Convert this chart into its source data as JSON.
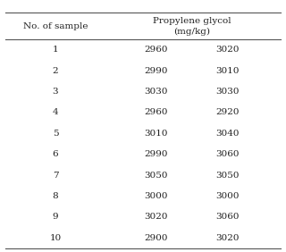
{
  "col_header_1": "No. of sample",
  "col_header_2": "Propylene glycol",
  "col_header_2b": "(mg/kg)",
  "rows": [
    [
      "1",
      "2960",
      "3020"
    ],
    [
      "2",
      "2990",
      "3010"
    ],
    [
      "3",
      "3030",
      "3030"
    ],
    [
      "4",
      "2960",
      "2920"
    ],
    [
      "5",
      "3010",
      "3040"
    ],
    [
      "6",
      "2990",
      "3060"
    ],
    [
      "7",
      "3050",
      "3050"
    ],
    [
      "8",
      "3000",
      "3000"
    ],
    [
      "9",
      "3020",
      "3060"
    ],
    [
      "10",
      "2900",
      "3020"
    ]
  ],
  "background_color": "#ffffff",
  "text_color": "#222222",
  "line_color": "#555555",
  "font_size": 7.5,
  "header_font_size": 7.5
}
